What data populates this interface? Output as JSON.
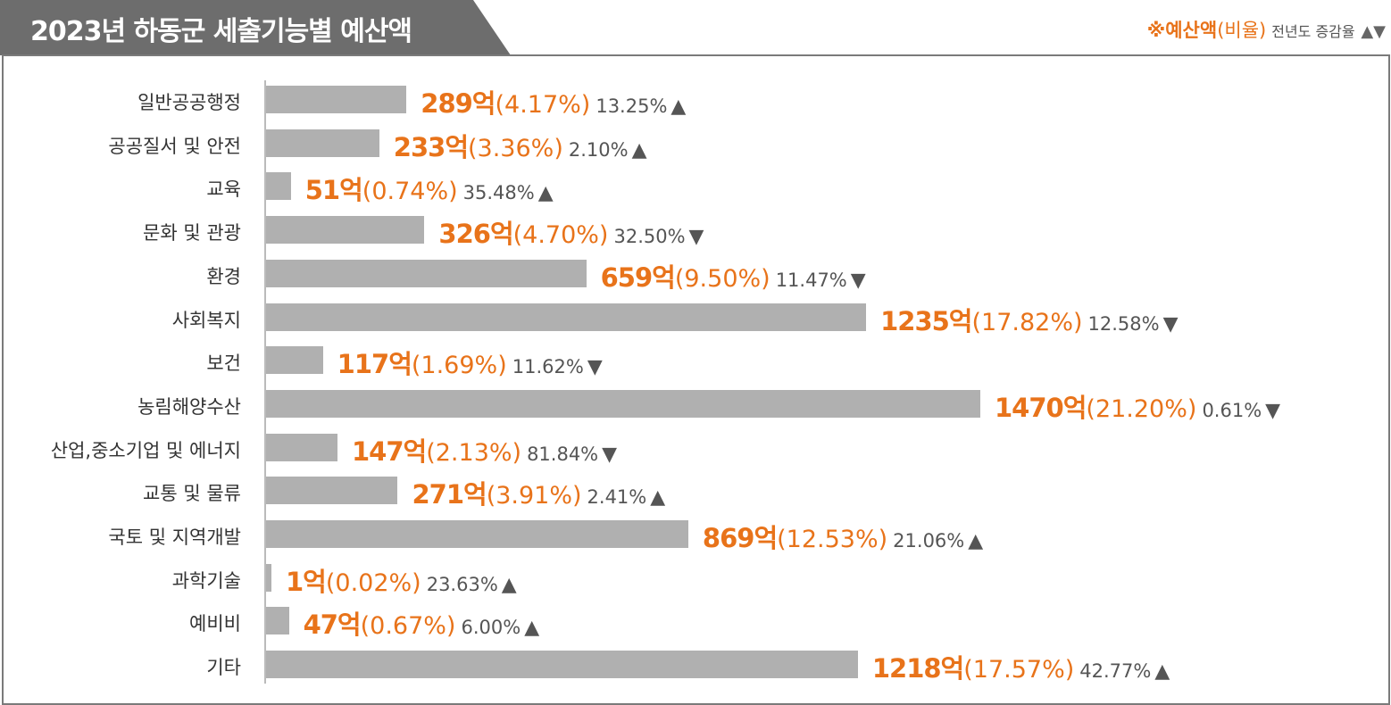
{
  "chart_data": {
    "type": "bar",
    "orientation": "horizontal",
    "title": "2023년 하동군 세출기능별 예산액",
    "legend": {
      "amount_label": "※예산액",
      "ratio_label": "(비율)",
      "change_label": "전년도 증감율",
      "arrows": "▲▼"
    },
    "categories": [
      "일반공공행정",
      "공공질서 및 안전",
      "교육",
      "문화 및 관광",
      "환경",
      "사회복지",
      "보건",
      "농림해양수산",
      "산업,중소기업 및 에너지",
      "교통 및 물류",
      "국토 및 지역개발",
      "과학기술",
      "예비비",
      "기타"
    ],
    "unit": "억",
    "values": [
      289,
      233,
      51,
      326,
      659,
      1235,
      117,
      1470,
      147,
      271,
      869,
      1,
      47,
      1218
    ],
    "value_labels": [
      "289억",
      "233억",
      "51억",
      "326억",
      "659억",
      "1235억",
      "117억",
      "1470억",
      "147억",
      "271억",
      "869억",
      "1억",
      "47억",
      "1218억"
    ],
    "ratio_labels": [
      "(4.17%)",
      "(3.36%)",
      "(0.74%)",
      "(4.70%)",
      "(9.50%)",
      "(17.82%)",
      "(1.69%)",
      "(21.20%)",
      "(2.13%)",
      "(3.91%)",
      "(12.53%)",
      "(0.02%)",
      "(0.67%)",
      "(17.57%)"
    ],
    "change_labels": [
      "13.25%",
      "2.10%",
      "35.48%",
      "32.50%",
      "11.47%",
      "12.58%",
      "11.62%",
      "0.61%",
      "81.84%",
      "2.41%",
      "21.06%",
      "23.63%",
      "6.00%",
      "42.77%"
    ],
    "change_direction": [
      "up",
      "up",
      "up",
      "down",
      "down",
      "down",
      "down",
      "down",
      "down",
      "up",
      "up",
      "up",
      "up",
      "up"
    ],
    "grid": false,
    "colors": {
      "bar": "#b0b0b0",
      "value": "#e8731a",
      "title_bg": "#6d6d6d",
      "change": "#555555"
    }
  }
}
